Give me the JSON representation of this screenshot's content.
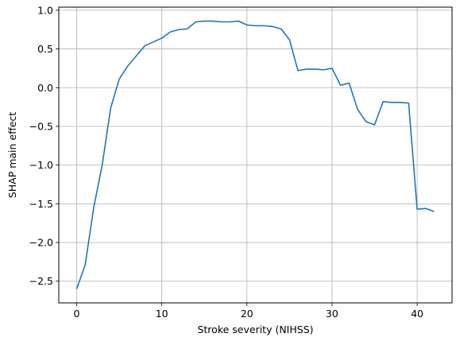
{
  "chart_data": {
    "type": "line",
    "xlabel": "Stroke severity (NIHSS)",
    "ylabel": "SHAP main effect",
    "xlim": [
      -2.1,
      44.1
    ],
    "ylim": [
      -2.78,
      1.04
    ],
    "xticks": [
      0,
      10,
      20,
      30,
      40
    ],
    "xtick_labels": [
      "0",
      "10",
      "20",
      "30",
      "40"
    ],
    "yticks": [
      -2.5,
      -2.0,
      -1.5,
      -1.0,
      -0.5,
      0.0,
      0.5,
      1.0
    ],
    "ytick_labels": [
      "−2.5",
      "−2.0",
      "−1.5",
      "−1.0",
      "−0.5",
      "0.0",
      "0.5",
      "1.0"
    ],
    "grid": true,
    "color": "#1f77b4",
    "series": [
      {
        "x": [
          0,
          1,
          2,
          3,
          4,
          5,
          6,
          7,
          8,
          9,
          10,
          11,
          12,
          13,
          14,
          15,
          16,
          17,
          18,
          19,
          20,
          21,
          22,
          23,
          24,
          25,
          26,
          27,
          28,
          29,
          30,
          31,
          32,
          33,
          34,
          35,
          36,
          37,
          38,
          39,
          40,
          41,
          42
        ],
        "y": [
          -2.6,
          -2.29,
          -1.55,
          -1.0,
          -0.26,
          0.11,
          0.28,
          0.41,
          0.54,
          0.59,
          0.64,
          0.72,
          0.75,
          0.76,
          0.85,
          0.86,
          0.86,
          0.85,
          0.85,
          0.86,
          0.81,
          0.8,
          0.8,
          0.79,
          0.76,
          0.62,
          0.22,
          0.24,
          0.24,
          0.23,
          0.25,
          0.03,
          0.06,
          -0.28,
          -0.44,
          -0.48,
          -0.18,
          -0.19,
          -0.19,
          -0.2,
          -1.57,
          -1.56,
          -1.6
        ]
      }
    ]
  }
}
